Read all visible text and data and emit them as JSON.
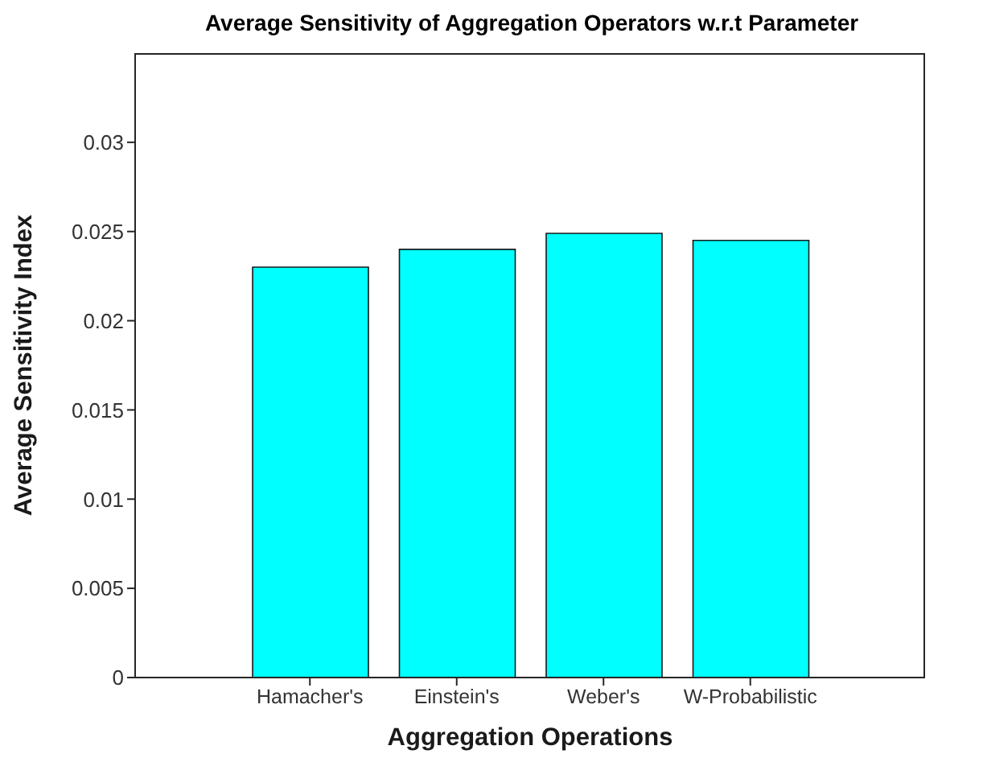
{
  "chart_data": {
    "type": "bar",
    "title": "Average Sensitivity of Aggregation Operators w.r.t Parameter",
    "xlabel": "Aggregation Operations",
    "ylabel": "Average Sensitivity Index",
    "categories": [
      "Hamacher's",
      "Einstein's",
      "Weber's",
      "W-Probabilistic"
    ],
    "values": [
      0.023,
      0.024,
      0.0249,
      0.0245
    ],
    "color": "#00ffff",
    "ylim": [
      0,
      0.035
    ],
    "yticks": [
      0,
      0.005,
      0.01,
      0.015,
      0.02,
      0.025,
      0.03
    ],
    "grid": false
  }
}
